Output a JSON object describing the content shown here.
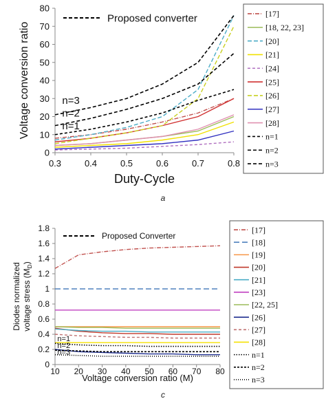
{
  "chart_data": [
    {
      "type": "line",
      "caption": "a",
      "xlabel": "Duty-Cycle",
      "ylabel": "Voltage conversion ratio",
      "xlim": [
        0.3,
        0.8
      ],
      "ylim": [
        0,
        80
      ],
      "xticks": [
        "0.3",
        "0.4",
        "0.5",
        "0.6",
        "0.7",
        "0.8"
      ],
      "yticks": [
        "0",
        "10",
        "20",
        "30",
        "40",
        "50",
        "60",
        "70",
        "80"
      ],
      "inner_legend": "Proposed converter",
      "annotations": [
        {
          "text": "n=3",
          "x": 0.32,
          "y": 27
        },
        {
          "text": "n=2",
          "x": 0.32,
          "y": 20
        },
        {
          "text": "n=1",
          "x": 0.32,
          "y": 13
        }
      ],
      "x": [
        0.3,
        0.4,
        0.5,
        0.6,
        0.7,
        0.8
      ],
      "series": [
        {
          "name": "[17]",
          "color": "#c0504d",
          "dash": "6,2,1,2",
          "values": [
            8,
            10,
            13,
            17,
            22,
            30
          ]
        },
        {
          "name": "[18, 22, 23]",
          "color": "#9bbb59",
          "dash": "",
          "values": [
            4,
            5,
            7,
            9,
            12,
            20
          ]
        },
        {
          "name": "[20]",
          "color": "#4bacc6",
          "dash": "6,3",
          "values": [
            7,
            10,
            14,
            20,
            35,
            76
          ]
        },
        {
          "name": "[21]",
          "color": "#f0e000",
          "dash": "",
          "values": [
            3,
            4,
            5,
            7,
            10,
            17
          ]
        },
        {
          "name": "[24]",
          "color": "#b070c0",
          "dash": "4,3",
          "values": [
            1.5,
            2,
            2.5,
            3.5,
            4.5,
            6
          ]
        },
        {
          "name": "[25]",
          "color": "#d03030",
          "dash": "",
          "values": [
            6,
            8,
            11,
            15,
            20,
            30
          ]
        },
        {
          "name": "[26]",
          "color": "#c8d020",
          "dash": "6,3",
          "values": [
            5,
            8,
            11,
            15,
            30,
            70
          ]
        },
        {
          "name": "[27]",
          "color": "#3030c0",
          "dash": "",
          "values": [
            2,
            3,
            4,
            5,
            7,
            12
          ]
        },
        {
          "name": "[28]",
          "color": "#e090b0",
          "dash": "",
          "values": [
            4,
            5,
            7,
            9,
            13,
            21
          ]
        },
        {
          "name": "n=1",
          "color": "#000000",
          "dash": "4,3",
          "values": [
            10,
            13,
            17,
            22,
            29,
            35
          ]
        },
        {
          "name": "n=2",
          "color": "#000000",
          "dash": "5,3",
          "values": [
            15,
            19,
            24,
            30,
            38,
            55
          ]
        },
        {
          "name": "n=3",
          "color": "#000000",
          "dash": "5,3",
          "values": [
            21,
            25,
            30,
            38,
            50,
            76
          ]
        }
      ]
    },
    {
      "type": "line",
      "caption": "c",
      "xlabel": "Voltage conversion ratio (M)",
      "ylabel_line1": "Diodes normalized",
      "ylabel_line2": "voltage stress (M",
      "ylabel_sub": "D",
      "ylabel_end": ")",
      "xlim": [
        10,
        80
      ],
      "ylim": [
        0,
        1.8
      ],
      "xticks": [
        "10",
        "20",
        "30",
        "40",
        "50",
        "60",
        "70",
        "80"
      ],
      "yticks": [
        "0",
        "0.2",
        "0.4",
        "0.6",
        "0.8",
        "1",
        "1.2",
        "1.4",
        "1.6",
        "1.8"
      ],
      "inner_legend": "Proposed Converter",
      "annotations": [
        {
          "text": "n=1",
          "x": 11,
          "y": 0.31
        },
        {
          "text": "n=2",
          "x": 11,
          "y": 0.22
        },
        {
          "text": "n=3",
          "x": 11,
          "y": 0.13
        }
      ],
      "x": [
        10,
        20,
        30,
        40,
        50,
        60,
        70,
        80
      ],
      "series": [
        {
          "name": "[17]",
          "color": "#c0504d",
          "dash": "6,2,1,2",
          "values": [
            1.27,
            1.45,
            1.49,
            1.52,
            1.54,
            1.55,
            1.56,
            1.57
          ]
        },
        {
          "name": "[18]",
          "color": "#4f81bd",
          "dash": "8,4",
          "values": [
            1.0,
            1.0,
            1.0,
            1.0,
            1.0,
            1.0,
            1.0,
            1.0
          ]
        },
        {
          "name": "[19]",
          "color": "#f79646",
          "dash": "",
          "values": [
            0.5,
            0.5,
            0.5,
            0.5,
            0.5,
            0.5,
            0.5,
            0.5
          ]
        },
        {
          "name": "[20]",
          "color": "#c0392b",
          "dash": "",
          "values": [
            0.48,
            0.44,
            0.42,
            0.41,
            0.41,
            0.4,
            0.4,
            0.4
          ]
        },
        {
          "name": "[21]",
          "color": "#4bacc6",
          "dash": "",
          "values": [
            0.47,
            0.45,
            0.44,
            0.44,
            0.43,
            0.43,
            0.43,
            0.43
          ]
        },
        {
          "name": "[23]",
          "color": "#c040c0",
          "dash": "",
          "values": [
            0.72,
            0.72,
            0.72,
            0.72,
            0.72,
            0.72,
            0.72,
            0.72
          ]
        },
        {
          "name": "[22, 25]",
          "color": "#9bbb59",
          "dash": "",
          "values": [
            0.5,
            0.49,
            0.49,
            0.48,
            0.48,
            0.48,
            0.48,
            0.48
          ]
        },
        {
          "name": "[26]",
          "color": "#1f2f8f",
          "dash": "",
          "values": [
            0.2,
            0.17,
            0.16,
            0.15,
            0.14,
            0.14,
            0.13,
            0.13
          ]
        },
        {
          "name": "[27]",
          "color": "#c07070",
          "dash": "4,3",
          "values": [
            0.4,
            0.38,
            0.37,
            0.36,
            0.36,
            0.35,
            0.35,
            0.35
          ]
        },
        {
          "name": "[28]",
          "color": "#f5e000",
          "dash": "",
          "values": [
            0.29,
            0.29,
            0.29,
            0.29,
            0.29,
            0.29,
            0.29,
            0.29
          ]
        },
        {
          "name": "n=1",
          "color": "#000000",
          "dash": "1.5,2",
          "values": [
            0.28,
            0.26,
            0.25,
            0.25,
            0.24,
            0.24,
            0.24,
            0.24
          ]
        },
        {
          "name": "n=2",
          "color": "#000000",
          "dash": "3,2",
          "values": [
            0.19,
            0.18,
            0.17,
            0.17,
            0.17,
            0.17,
            0.17,
            0.17
          ]
        },
        {
          "name": "n=3",
          "color": "#000000",
          "dash": "1,2",
          "values": [
            0.13,
            0.12,
            0.11,
            0.11,
            0.11,
            0.11,
            0.11,
            0.11
          ]
        }
      ]
    }
  ]
}
